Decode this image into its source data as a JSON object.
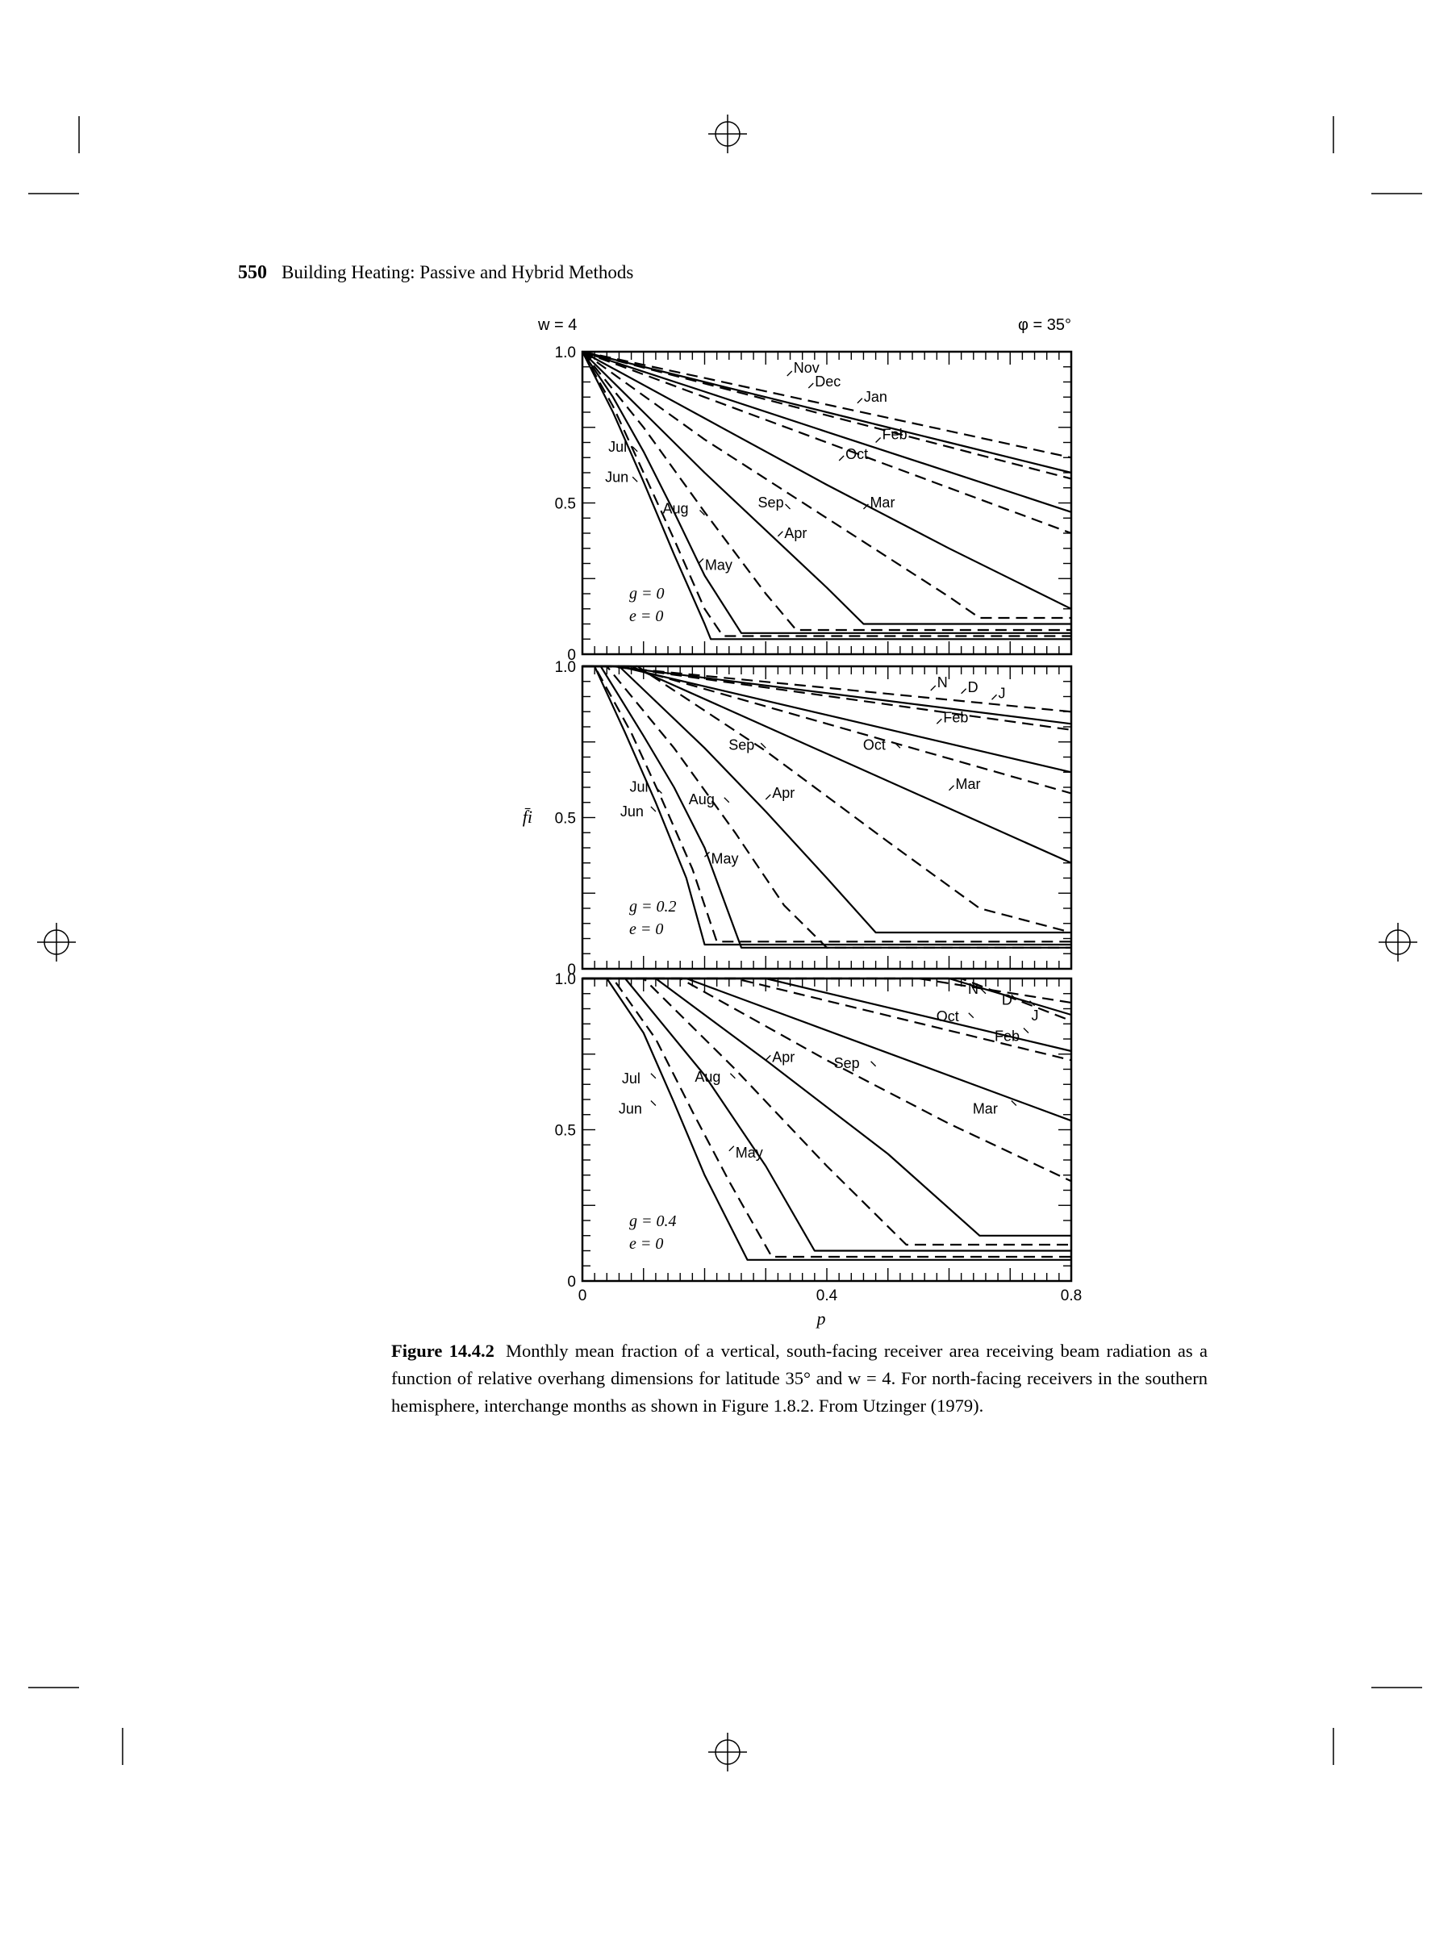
{
  "page": {
    "number": "550",
    "running_title": "Building Heating: Passive and Hybrid Methods"
  },
  "caption": {
    "label": "Figure 14.4.2",
    "text": "Monthly mean fraction of a vertical, south-facing receiver area receiving beam radiation as a function of relative overhang dimensions for latitude 35° and w = 4. For north-facing receivers in the southern hemisphere, interchange months as shown in Figure 1.8.2. From Utzinger (1979)."
  },
  "chart_data": [
    {
      "type": "line",
      "corner_left": "w = 4",
      "corner_right": "φ = 35°",
      "xlabel": "p",
      "ylabel": "f̄i",
      "xlim": [
        0,
        0.8
      ],
      "ylim": [
        0,
        1.0
      ],
      "yticks": [
        "1.0",
        "0.5",
        "0"
      ],
      "params": [
        "g = 0",
        "e = 0"
      ],
      "series": [
        {
          "name": "Nov",
          "dash": true,
          "x": [
            0,
            0.2,
            0.4,
            0.6,
            0.8
          ],
          "y": [
            1.0,
            0.913,
            0.825,
            0.738,
            0.65
          ]
        },
        {
          "name": "Dec",
          "dash": false,
          "x": [
            0,
            0.2,
            0.4,
            0.6,
            0.8
          ],
          "y": [
            1.0,
            0.9,
            0.8,
            0.7,
            0.6
          ]
        },
        {
          "name": "Jan",
          "dash": true,
          "x": [
            0,
            0.2,
            0.4,
            0.6,
            0.8
          ],
          "y": [
            1.0,
            0.895,
            0.79,
            0.685,
            0.58
          ]
        },
        {
          "name": "Feb",
          "dash": false,
          "x": [
            0,
            0.2,
            0.4,
            0.6,
            0.8
          ],
          "y": [
            1.0,
            0.868,
            0.735,
            0.603,
            0.47
          ]
        },
        {
          "name": "Oct",
          "dash": true,
          "x": [
            0,
            0.2,
            0.4,
            0.6,
            0.8
          ],
          "y": [
            1.0,
            0.85,
            0.7,
            0.55,
            0.4
          ]
        },
        {
          "name": "Mar",
          "dash": false,
          "x": [
            0,
            0.2,
            0.4,
            0.6,
            0.8
          ],
          "y": [
            1.0,
            0.78,
            0.56,
            0.35,
            0.15
          ]
        },
        {
          "name": "Sep",
          "dash": true,
          "x": [
            0,
            0.2,
            0.4,
            0.6,
            0.65,
            0.8
          ],
          "y": [
            1.0,
            0.71,
            0.45,
            0.19,
            0.12,
            0.12
          ]
        },
        {
          "name": "Apr",
          "dash": false,
          "x": [
            0,
            0.1,
            0.2,
            0.3,
            0.4,
            0.46,
            0.8
          ],
          "y": [
            1.0,
            0.8,
            0.6,
            0.41,
            0.22,
            0.1,
            0.1
          ]
        },
        {
          "name": "Aug",
          "dash": true,
          "x": [
            0,
            0.1,
            0.2,
            0.3,
            0.35,
            0.8
          ],
          "y": [
            1.0,
            0.75,
            0.47,
            0.2,
            0.08,
            0.08
          ]
        },
        {
          "name": "May",
          "dash": false,
          "x": [
            0,
            0.05,
            0.1,
            0.15,
            0.2,
            0.26,
            0.8
          ],
          "y": [
            1.0,
            0.85,
            0.67,
            0.47,
            0.26,
            0.07,
            0.07
          ]
        },
        {
          "name": "Jun",
          "dash": false,
          "x": [
            0,
            0.05,
            0.1,
            0.15,
            0.2,
            0.21,
            0.8
          ],
          "y": [
            1.0,
            0.8,
            0.57,
            0.33,
            0.1,
            0.05,
            0.05
          ]
        },
        {
          "name": "Jul",
          "dash": true,
          "x": [
            0,
            0.05,
            0.1,
            0.15,
            0.2,
            0.23,
            0.8
          ],
          "y": [
            1.0,
            0.82,
            0.6,
            0.38,
            0.15,
            0.06,
            0.06
          ]
        }
      ]
    },
    {
      "type": "line",
      "xlim": [
        0,
        0.8
      ],
      "ylim": [
        0,
        1.0
      ],
      "yticks": [
        "1.0",
        "0.5",
        "0"
      ],
      "params": [
        "g = 0.2",
        "e = 0"
      ],
      "series": [
        {
          "name": "N",
          "dash": true,
          "x": [
            0,
            0.04,
            0.8
          ],
          "y": [
            1.0,
            1.0,
            0.85
          ]
        },
        {
          "name": "D",
          "dash": false,
          "x": [
            0,
            0.05,
            0.8
          ],
          "y": [
            1.0,
            1.0,
            0.81
          ]
        },
        {
          "name": "J",
          "dash": true,
          "x": [
            0,
            0.05,
            0.8
          ],
          "y": [
            1.0,
            1.0,
            0.79
          ]
        },
        {
          "name": "Feb",
          "dash": false,
          "x": [
            0,
            0.06,
            0.8
          ],
          "y": [
            1.0,
            1.0,
            0.65
          ]
        },
        {
          "name": "Oct",
          "dash": true,
          "x": [
            0,
            0.07,
            0.8
          ],
          "y": [
            1.0,
            1.0,
            0.58
          ]
        },
        {
          "name": "Mar",
          "dash": false,
          "x": [
            0,
            0.08,
            0.8
          ],
          "y": [
            1.0,
            1.0,
            0.35
          ]
        },
        {
          "name": "Sep",
          "dash": true,
          "x": [
            0,
            0.09,
            0.3,
            0.5,
            0.65,
            0.8
          ],
          "y": [
            1.0,
            1.0,
            0.72,
            0.42,
            0.2,
            0.12
          ]
        },
        {
          "name": "Apr",
          "dash": false,
          "x": [
            0,
            0.06,
            0.2,
            0.3,
            0.4,
            0.48,
            0.8
          ],
          "y": [
            1.0,
            1.0,
            0.73,
            0.52,
            0.3,
            0.12,
            0.12
          ]
        },
        {
          "name": "Aug",
          "dash": true,
          "x": [
            0,
            0.04,
            0.15,
            0.25,
            0.33,
            0.4,
            0.8
          ],
          "y": [
            1.0,
            1.0,
            0.73,
            0.45,
            0.21,
            0.07,
            0.07
          ]
        },
        {
          "name": "May",
          "dash": false,
          "x": [
            0,
            0.03,
            0.1,
            0.15,
            0.2,
            0.26,
            0.8
          ],
          "y": [
            1.0,
            1.0,
            0.77,
            0.6,
            0.4,
            0.07,
            0.07
          ]
        },
        {
          "name": "Jun",
          "dash": false,
          "x": [
            0,
            0.02,
            0.07,
            0.12,
            0.17,
            0.2,
            0.8
          ],
          "y": [
            1.0,
            1.0,
            0.78,
            0.55,
            0.3,
            0.08,
            0.08
          ]
        },
        {
          "name": "Jul",
          "dash": true,
          "x": [
            0,
            0.02,
            0.08,
            0.13,
            0.18,
            0.22,
            0.8
          ],
          "y": [
            1.0,
            1.0,
            0.78,
            0.56,
            0.33,
            0.09,
            0.09
          ]
        }
      ]
    },
    {
      "type": "line",
      "xlim": [
        0,
        0.8
      ],
      "ylim": [
        0,
        1.0
      ],
      "xticks": [
        "0",
        "0.4",
        "0.8"
      ],
      "yticks": [
        "1.0",
        "0.5",
        "0"
      ],
      "params": [
        "g = 0.4",
        "e = 0"
      ],
      "series": [
        {
          "name": "N",
          "dash": true,
          "x": [
            0,
            0.55,
            0.8
          ],
          "y": [
            1.0,
            1.0,
            0.92
          ]
        },
        {
          "name": "D",
          "dash": false,
          "x": [
            0,
            0.6,
            0.8
          ],
          "y": [
            1.0,
            1.0,
            0.88
          ]
        },
        {
          "name": "J",
          "dash": true,
          "x": [
            0,
            0.62,
            0.8
          ],
          "y": [
            1.0,
            1.0,
            0.86
          ]
        },
        {
          "name": "Feb",
          "dash": false,
          "x": [
            0,
            0.3,
            0.8
          ],
          "y": [
            1.0,
            1.0,
            0.76
          ]
        },
        {
          "name": "Oct",
          "dash": true,
          "x": [
            0,
            0.25,
            0.8
          ],
          "y": [
            1.0,
            1.0,
            0.73
          ]
        },
        {
          "name": "Mar",
          "dash": false,
          "x": [
            0,
            0.17,
            0.8
          ],
          "y": [
            1.0,
            1.0,
            0.53
          ]
        },
        {
          "name": "Sep",
          "dash": true,
          "x": [
            0,
            0.16,
            0.4,
            0.6,
            0.8
          ],
          "y": [
            1.0,
            1.0,
            0.73,
            0.52,
            0.33
          ]
        },
        {
          "name": "Apr",
          "dash": false,
          "x": [
            0,
            0.12,
            0.3,
            0.5,
            0.65,
            0.8
          ],
          "y": [
            1.0,
            1.0,
            0.73,
            0.42,
            0.15,
            0.15
          ]
        },
        {
          "name": "Aug",
          "dash": true,
          "x": [
            0,
            0.1,
            0.25,
            0.4,
            0.53,
            0.8
          ],
          "y": [
            1.0,
            1.0,
            0.7,
            0.38,
            0.12,
            0.12
          ]
        },
        {
          "name": "May",
          "dash": false,
          "x": [
            0,
            0.07,
            0.2,
            0.3,
            0.38,
            0.8
          ],
          "y": [
            1.0,
            1.0,
            0.68,
            0.38,
            0.1,
            0.1
          ]
        },
        {
          "name": "Jun",
          "dash": false,
          "x": [
            0,
            0.04,
            0.1,
            0.15,
            0.2,
            0.27,
            0.8
          ],
          "y": [
            1.0,
            1.0,
            0.82,
            0.59,
            0.35,
            0.07,
            0.07
          ]
        },
        {
          "name": "Jul",
          "dash": true,
          "x": [
            0,
            0.05,
            0.12,
            0.18,
            0.24,
            0.31,
            0.8
          ],
          "y": [
            1.0,
            1.0,
            0.8,
            0.56,
            0.33,
            0.08,
            0.08
          ]
        }
      ]
    }
  ]
}
